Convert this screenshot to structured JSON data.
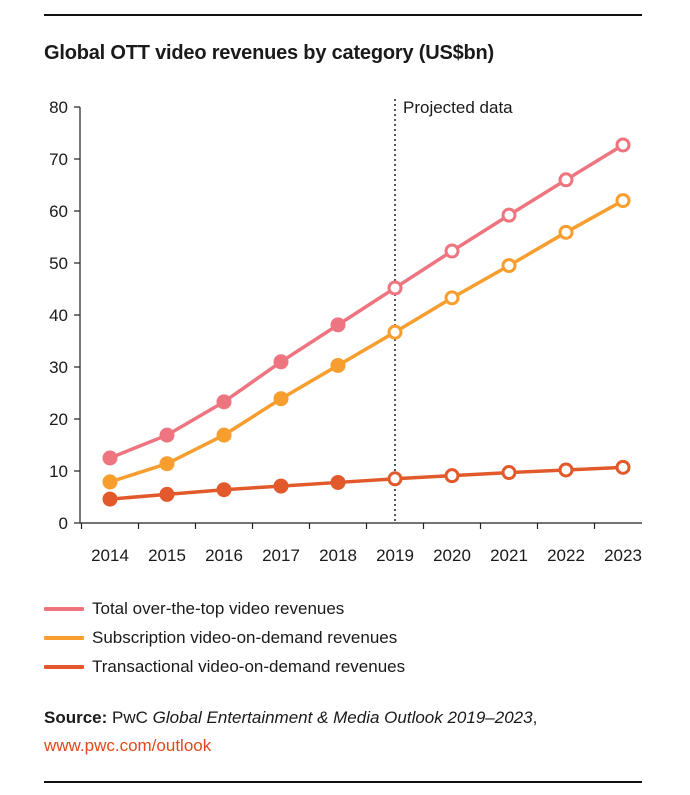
{
  "title": "Global OTT video revenues by category (US$bn)",
  "projection_label": "Projected data",
  "source": {
    "label": "Source:",
    "prefix": "PwC ",
    "publication": "Global Entertainment & Media Outlook 2019–2023",
    "suffix": ",",
    "link": "www.pwc.com/outlook"
  },
  "chart_data": {
    "type": "line",
    "title": "Global OTT video revenues by category (US$bn)",
    "x": [
      "2014",
      "2015",
      "2016",
      "2017",
      "2018",
      "2019",
      "2020",
      "2021",
      "2022",
      "2023"
    ],
    "yticks": [
      "0",
      "10",
      "20",
      "30",
      "40",
      "50",
      "60",
      "70",
      "80"
    ],
    "ylim": [
      0,
      80
    ],
    "projection_start": "2019",
    "grid": false,
    "legend_position": "bottom",
    "series": [
      {
        "name": "Total over-the-top video revenues",
        "color": "#ee7480",
        "values": [
          12.5,
          16.9,
          23.3,
          31.0,
          38.1,
          45.2,
          52.3,
          59.2,
          66.0,
          72.7
        ]
      },
      {
        "name": "Subscription video-on-demand revenues",
        "color": "#f79e2e",
        "values": [
          7.9,
          11.4,
          16.9,
          23.9,
          30.3,
          36.7,
          43.3,
          49.5,
          55.9,
          62.0
        ]
      },
      {
        "name": "Transactional video-on-demand revenues",
        "color": "#e25a2b",
        "values": [
          4.6,
          5.5,
          6.4,
          7.1,
          7.8,
          8.5,
          9.1,
          9.7,
          10.2,
          10.7
        ]
      }
    ]
  }
}
